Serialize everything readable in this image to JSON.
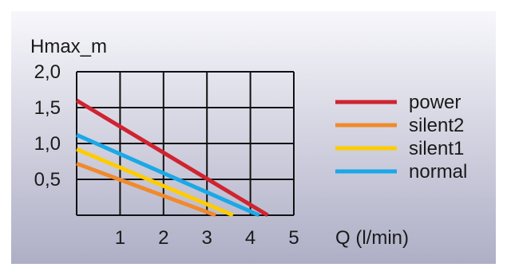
{
  "chart_data": {
    "type": "line",
    "ylabel": "Hmax_m",
    "xlabel": "Q (l/min)",
    "xlim": [
      0,
      5
    ],
    "ylim": [
      0,
      2.0
    ],
    "x_ticks": [
      "1",
      "2",
      "3",
      "4",
      "5"
    ],
    "y_ticks": [
      "0,5",
      "1,0",
      "1,5",
      "2,0"
    ],
    "x_tick_values": [
      1,
      2,
      3,
      4,
      5
    ],
    "y_tick_values": [
      0.5,
      1.0,
      1.5,
      2.0
    ],
    "grid": true,
    "legend_position": "right",
    "background_gradient": [
      "#f7f7fb",
      "#aeaec6"
    ],
    "series": [
      {
        "name": "power",
        "color": "#cf2430",
        "points": [
          [
            0,
            1.6
          ],
          [
            4.4,
            0
          ]
        ]
      },
      {
        "name": "silent2",
        "color": "#f08a2c",
        "points": [
          [
            0,
            0.72
          ],
          [
            3.2,
            0
          ]
        ]
      },
      {
        "name": "silent1",
        "color": "#ffcc00",
        "points": [
          [
            0,
            0.92
          ],
          [
            3.6,
            0
          ]
        ]
      },
      {
        "name": "normal",
        "color": "#1aa9e6",
        "points": [
          [
            0,
            1.12
          ],
          [
            4.2,
            0
          ]
        ]
      }
    ]
  }
}
